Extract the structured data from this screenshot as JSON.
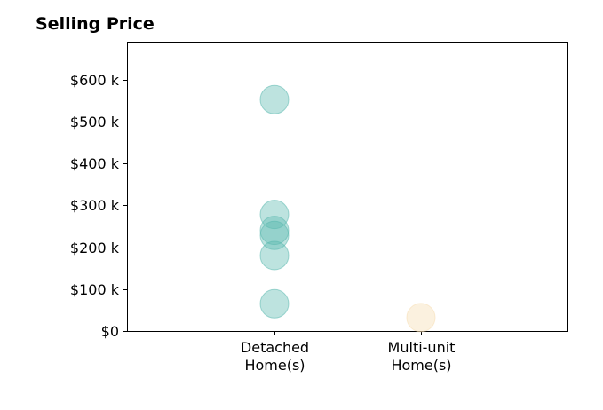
{
  "chart_data": {
    "type": "scatter",
    "title": "Selling Price",
    "xlabel": "",
    "ylabel": "",
    "categories": [
      [
        "Detached",
        "Home(s)"
      ],
      [
        "Multi-unit",
        "Home(s)"
      ]
    ],
    "ylim": [
      0,
      690000
    ],
    "yticks": [
      {
        "value": 0,
        "label": "$0"
      },
      {
        "value": 100000,
        "label": "$100 k"
      },
      {
        "value": 200000,
        "label": "$200 k"
      },
      {
        "value": 300000,
        "label": "$300 k"
      },
      {
        "value": 400000,
        "label": "$400 k"
      },
      {
        "value": 500000,
        "label": "$500 k"
      },
      {
        "value": 600000,
        "label": "$600 k"
      }
    ],
    "grid": false,
    "series": [
      {
        "category": 0,
        "color": "#5ab8ae",
        "values": [
          552000,
          278000,
          240000,
          228000,
          180000,
          65000
        ]
      },
      {
        "category": 1,
        "color": "#f5ddb0",
        "values": [
          32000
        ]
      }
    ]
  }
}
